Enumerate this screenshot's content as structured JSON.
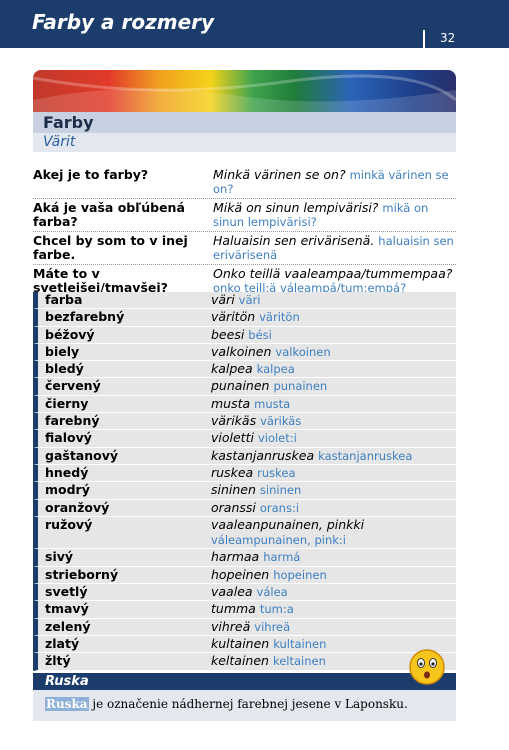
{
  "header": {
    "title": "Farby a rozmery",
    "page_number": "32"
  },
  "section": {
    "title": "Farby",
    "subtitle": "Värit"
  },
  "phrases": [
    {
      "sk": "Akej je to farby?",
      "fi": "Minkä värinen se on?",
      "pron": "minkä värinen se on?"
    },
    {
      "sk": "Aká je vaša obľúbená farba?",
      "fi": "Mikä on sinun lempivärisi?",
      "pron": "mikä on sinun lempivärisi?"
    },
    {
      "sk": "Chcel by som to v inej farbe.",
      "fi": "Haluaisin sen erivärisenä.",
      "pron": "haluaisin sen erivärisenä"
    },
    {
      "sk": "Máte to v svetlejšej/tmavšej?",
      "fi": "Onko teillä vaaleampaa/tummempaa?",
      "pron": "onko teill:ä váleampá/tum:empá?"
    }
  ],
  "vocabulary": [
    {
      "sk": "farba",
      "fi": "väri",
      "pron": "väri"
    },
    {
      "sk": "bezfarebný",
      "fi": "väritön",
      "pron": "väritön"
    },
    {
      "sk": "béžový",
      "fi": "beesi",
      "pron": "bési"
    },
    {
      "sk": "biely",
      "fi": "valkoinen",
      "pron": "valkoinen"
    },
    {
      "sk": "bledý",
      "fi": "kalpea",
      "pron": "kalpea"
    },
    {
      "sk": "červený",
      "fi": "punainen",
      "pron": "punainen"
    },
    {
      "sk": "čierny",
      "fi": "musta",
      "pron": "musta"
    },
    {
      "sk": "farebný",
      "fi": "värikäs",
      "pron": "värikäs"
    },
    {
      "sk": "fialový",
      "fi": "violetti",
      "pron": "violet:i"
    },
    {
      "sk": "gaštanový",
      "fi": "kastanjanruskea",
      "pron": "kastanjanruskea"
    },
    {
      "sk": "hnedý",
      "fi": "ruskea",
      "pron": "ruskea"
    },
    {
      "sk": "modrý",
      "fi": "sininen",
      "pron": "sininen"
    },
    {
      "sk": "oranžový",
      "fi": "oranssi",
      "pron": "orans:i"
    },
    {
      "sk": "ružový",
      "fi": "vaaleanpunainen, pinkki",
      "pron": "váleampunainen, pink:i"
    },
    {
      "sk": "sivý",
      "fi": "harmaa",
      "pron": "harmá"
    },
    {
      "sk": "strieborný",
      "fi": "hopeinen",
      "pron": "hopeinen"
    },
    {
      "sk": "svetlý",
      "fi": "vaalea",
      "pron": "válea"
    },
    {
      "sk": "tmavý",
      "fi": "tumma",
      "pron": "tum:a"
    },
    {
      "sk": "zelený",
      "fi": "vihreä",
      "pron": "vihreä"
    },
    {
      "sk": "zlatý",
      "fi": "kultainen",
      "pron": "kultainen"
    },
    {
      "sk": "žltý",
      "fi": "keltainen",
      "pron": "keltainen"
    }
  ],
  "info_box": {
    "title": "Ruska",
    "keyword": "Ruska",
    "text": "je označenie nádhernej farebnej jesene v Laponsku."
  }
}
